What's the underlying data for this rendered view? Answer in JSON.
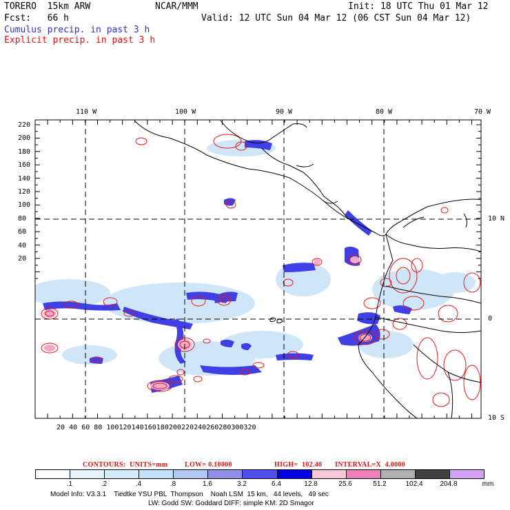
{
  "header": {
    "model": "TORERO  15km ARW",
    "org": "NCAR/MMM",
    "init": "Init: 18 UTC Thu 01 Mar 12",
    "fcst": "Fcst:   66 h",
    "valid": "Valid: 12 UTC Sun 04 Mar 12 (06 CST Sun 04 Mar 12)",
    "field1": "Cumulus precip. in past 3 h",
    "field2": "Explicit precip. in past 3 h"
  },
  "colors": {
    "field1": "#3030c8",
    "field2": "#e01010",
    "lightBlue": "#c8e4f8",
    "blue": "#3a3ae0",
    "dark": "#1818d8",
    "pink": "#f0a0c8",
    "red": "#ff2020"
  },
  "top_axis": [
    "110 W",
    "100 W",
    "90 W",
    "80 W",
    "70 W"
  ],
  "right_axis": [
    "10 N",
    "0",
    "10 S"
  ],
  "left_axis": [
    "220",
    "200",
    "180",
    "160",
    "140",
    "120",
    "100",
    "80",
    "60",
    "40",
    "20"
  ],
  "bottom_axis": [
    "20",
    "40",
    "60",
    "80",
    "100",
    "120",
    "140",
    "160",
    "180",
    "200",
    "220",
    "240",
    "260",
    "280",
    "300",
    "320"
  ],
  "contour_info": {
    "units": "CONTOURS:  UNITS=mm",
    "low": "LOW= 0.10000",
    "high": "HIGH=  102.40",
    "interval": "INTERVAL=X  4.0000"
  },
  "colorbar": {
    "labels": [
      ".1",
      ".2",
      ".4",
      ".8",
      "1.6",
      "3.2",
      "6.4",
      "12.8",
      "25.6",
      "51.2",
      "102.4",
      "204.8"
    ],
    "unit": "mm",
    "colors": [
      "#ffffff",
      "#e8f4fc",
      "#d4ecfa",
      "#c0e2f8",
      "#b0c8f0",
      "#9090e8",
      "#5050f0",
      "#0000e0",
      "#f8c8d8",
      "#f080b8",
      "#b0b0b0",
      "#404040",
      "#d8a0f8"
    ]
  },
  "footer": {
    "line1": "Model Info: V3.3.1    Tiedtke YSU PBL  Thompson    Noah LSM  15 km,   44 levels,   49 sec",
    "line2": "LW: Godd SW: Goddard DIFF: simple KM: 2D Smagor"
  }
}
